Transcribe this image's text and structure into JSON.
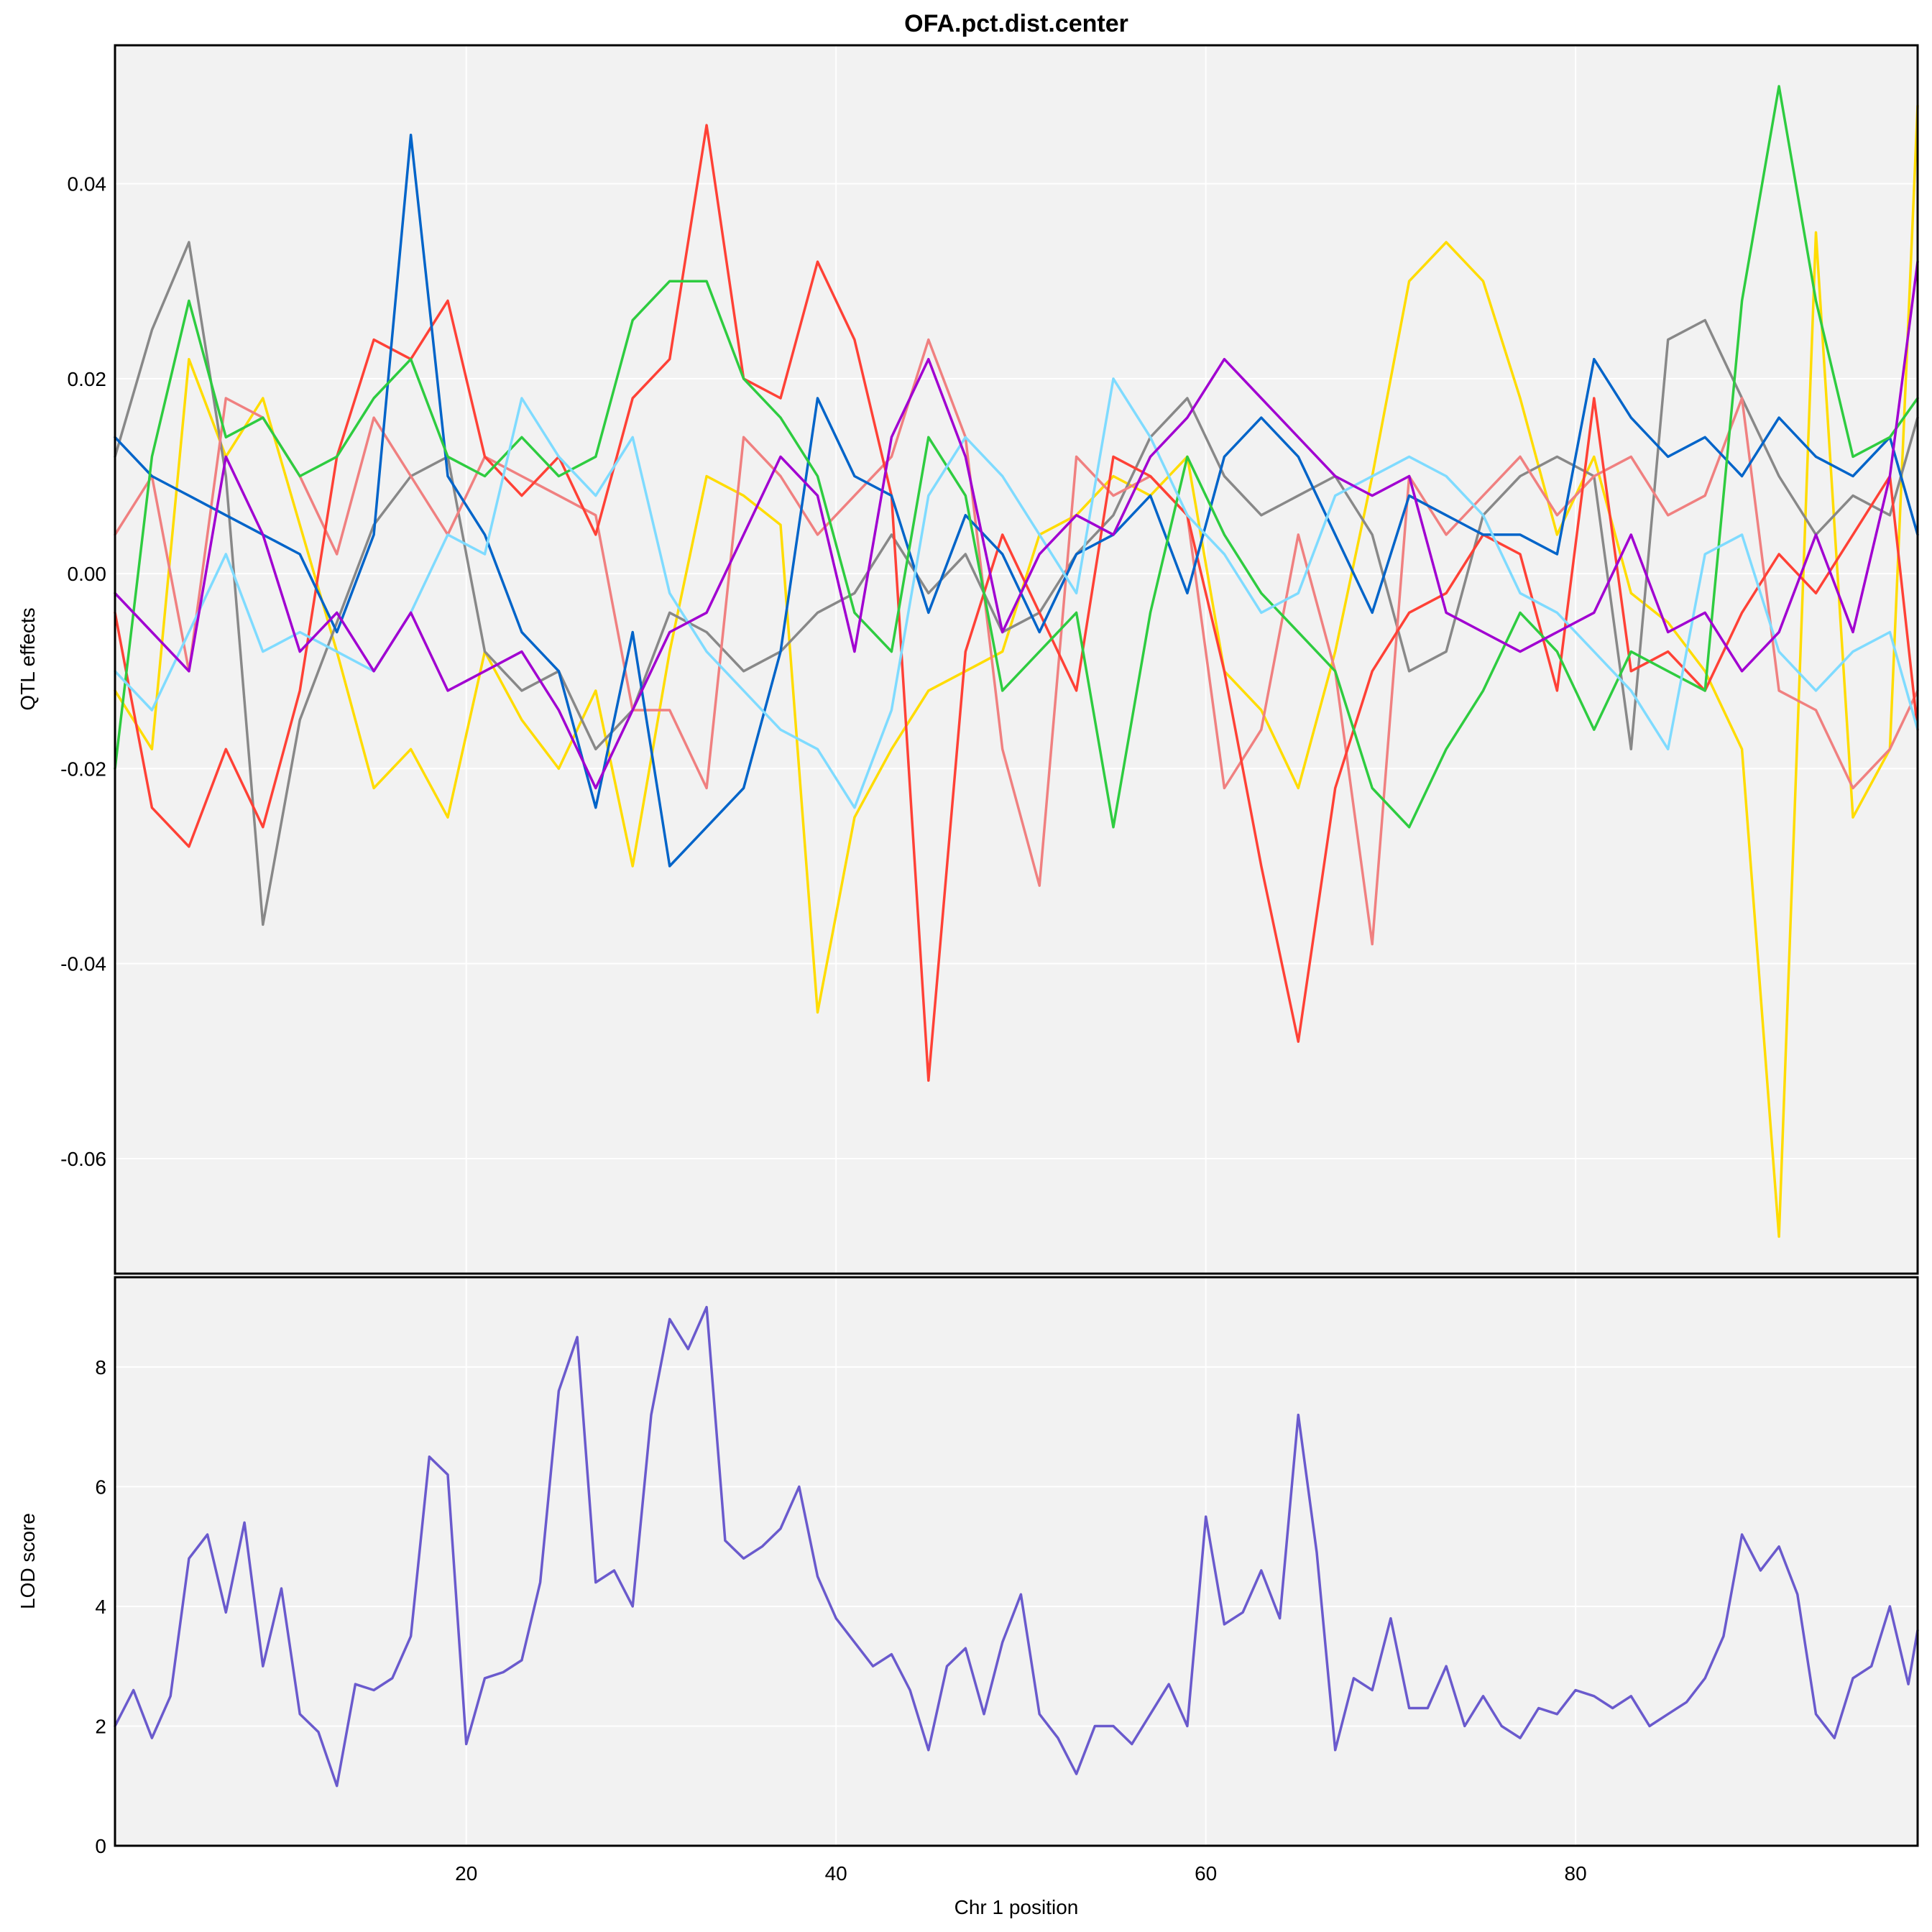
{
  "chart_data": [
    {
      "type": "line",
      "title": "OFA.pct.dist.center",
      "ylabel": "QTL effects",
      "xlim": [
        1,
        98.5
      ],
      "ylim": [
        -0.0718,
        0.0542
      ],
      "grid": true,
      "x_ticks": [
        20,
        40,
        60,
        80
      ],
      "y_ticks": [
        -0.06,
        -0.04,
        -0.02,
        0.0,
        0.02,
        0.04
      ],
      "y_tick_labels": [
        "-0.06",
        "-0.04",
        "-0.02",
        "0.00",
        "0.02",
        "0.04"
      ],
      "x": [
        1,
        3,
        5,
        7,
        9,
        11,
        13,
        15,
        17,
        19,
        21,
        23,
        25,
        27,
        29,
        31,
        33,
        35,
        37,
        39,
        41,
        43,
        45,
        47,
        49,
        51,
        53,
        55,
        57,
        59,
        61,
        63,
        65,
        67,
        69,
        71,
        73,
        75,
        77,
        79,
        81,
        83,
        85,
        87,
        89,
        91,
        93,
        95,
        97,
        98.5
      ],
      "series": [
        {
          "color": "#FFDC00",
          "values": [
            -0.012,
            -0.018,
            0.022,
            0.012,
            0.018,
            0.005,
            -0.008,
            -0.022,
            -0.018,
            -0.025,
            -0.008,
            -0.015,
            -0.02,
            -0.012,
            -0.03,
            -0.008,
            0.01,
            0.008,
            0.005,
            -0.045,
            -0.025,
            -0.018,
            -0.012,
            -0.01,
            -0.008,
            0.004,
            0.006,
            0.01,
            0.008,
            0.012,
            -0.01,
            -0.014,
            -0.022,
            -0.008,
            0.01,
            0.03,
            0.034,
            0.03,
            0.018,
            0.004,
            0.012,
            -0.002,
            -0.005,
            -0.01,
            -0.018,
            -0.068,
            0.035,
            -0.025,
            -0.018,
            0.048
          ]
        },
        {
          "color": "#888888",
          "values": [
            0.012,
            0.025,
            0.034,
            0.01,
            -0.036,
            -0.015,
            -0.005,
            0.005,
            0.01,
            0.012,
            -0.008,
            -0.012,
            -0.01,
            -0.018,
            -0.014,
            -0.004,
            -0.006,
            -0.01,
            -0.008,
            -0.004,
            -0.002,
            0.004,
            -0.002,
            0.002,
            -0.006,
            -0.004,
            0.002,
            0.006,
            0.014,
            0.018,
            0.01,
            0.006,
            0.008,
            0.01,
            0.004,
            -0.01,
            -0.008,
            0.006,
            0.01,
            0.012,
            0.01,
            -0.018,
            0.024,
            0.026,
            0.018,
            0.01,
            0.004,
            0.008,
            0.006,
            0.016
          ]
        },
        {
          "color": "#F08080",
          "values": [
            0.004,
            0.01,
            -0.01,
            0.018,
            0.016,
            0.01,
            0.002,
            0.016,
            0.01,
            0.004,
            0.012,
            0.01,
            0.008,
            0.006,
            -0.014,
            -0.014,
            -0.022,
            0.014,
            0.01,
            0.004,
            0.008,
            0.012,
            0.024,
            0.014,
            -0.018,
            -0.032,
            0.012,
            0.008,
            0.01,
            0.006,
            -0.022,
            -0.016,
            0.004,
            -0.01,
            -0.038,
            0.01,
            0.004,
            0.008,
            0.012,
            0.006,
            0.01,
            0.012,
            0.006,
            0.008,
            0.018,
            -0.012,
            -0.014,
            -0.022,
            -0.018,
            -0.012
          ]
        },
        {
          "color": "#FF4136",
          "values": [
            -0.004,
            -0.024,
            -0.028,
            -0.018,
            -0.026,
            -0.012,
            0.012,
            0.024,
            0.022,
            0.028,
            0.012,
            0.008,
            0.012,
            0.004,
            0.018,
            0.022,
            0.046,
            0.02,
            0.018,
            0.032,
            0.024,
            0.008,
            -0.052,
            -0.008,
            0.004,
            -0.004,
            -0.012,
            0.012,
            0.01,
            0.006,
            -0.01,
            -0.03,
            -0.048,
            -0.022,
            -0.01,
            -0.004,
            -0.002,
            0.004,
            0.002,
            -0.012,
            0.018,
            -0.01,
            -0.008,
            -0.012,
            -0.004,
            0.002,
            -0.002,
            0.004,
            0.01,
            -0.016
          ]
        },
        {
          "color": "#0064C9",
          "values": [
            0.014,
            0.01,
            0.008,
            0.006,
            0.004,
            0.002,
            -0.006,
            0.004,
            0.045,
            0.01,
            0.004,
            -0.006,
            -0.01,
            -0.024,
            -0.006,
            -0.03,
            -0.026,
            -0.022,
            -0.008,
            0.018,
            0.01,
            0.008,
            -0.004,
            0.006,
            0.002,
            -0.006,
            0.002,
            0.004,
            0.008,
            -0.002,
            0.012,
            0.016,
            0.012,
            0.004,
            -0.004,
            0.008,
            0.006,
            0.004,
            0.004,
            0.002,
            0.022,
            0.016,
            0.012,
            0.014,
            0.01,
            0.016,
            0.012,
            0.01,
            0.014,
            0.004
          ]
        },
        {
          "color": "#2ECC40",
          "values": [
            -0.02,
            0.012,
            0.028,
            0.014,
            0.016,
            0.01,
            0.012,
            0.018,
            0.022,
            0.012,
            0.01,
            0.014,
            0.01,
            0.012,
            0.026,
            0.03,
            0.03,
            0.02,
            0.016,
            0.01,
            -0.004,
            -0.008,
            0.014,
            0.008,
            -0.012,
            -0.008,
            -0.004,
            -0.026,
            -0.004,
            0.012,
            0.004,
            -0.002,
            -0.006,
            -0.01,
            -0.022,
            -0.026,
            -0.018,
            -0.012,
            -0.004,
            -0.008,
            -0.016,
            -0.008,
            -0.01,
            -0.012,
            0.028,
            0.05,
            0.028,
            0.012,
            0.014,
            0.018
          ]
        },
        {
          "color": "#7FDBFF",
          "values": [
            -0.01,
            -0.014,
            -0.006,
            0.002,
            -0.008,
            -0.006,
            -0.008,
            -0.01,
            -0.004,
            0.004,
            0.002,
            0.018,
            0.012,
            0.008,
            0.014,
            -0.002,
            -0.008,
            -0.012,
            -0.016,
            -0.018,
            -0.024,
            -0.014,
            0.008,
            0.014,
            0.01,
            0.004,
            -0.002,
            0.02,
            0.014,
            0.006,
            0.002,
            -0.004,
            -0.002,
            0.008,
            0.01,
            0.012,
            0.01,
            0.006,
            -0.002,
            -0.004,
            -0.008,
            -0.012,
            -0.018,
            0.002,
            0.004,
            -0.008,
            -0.012,
            -0.008,
            -0.006,
            -0.016
          ]
        },
        {
          "color": "#A100D1",
          "values": [
            -0.002,
            -0.006,
            -0.01,
            0.012,
            0.004,
            -0.008,
            -0.004,
            -0.01,
            -0.004,
            -0.012,
            -0.01,
            -0.008,
            -0.014,
            -0.022,
            -0.014,
            -0.006,
            -0.004,
            0.004,
            0.012,
            0.008,
            -0.008,
            0.014,
            0.022,
            0.012,
            -0.006,
            0.002,
            0.006,
            0.004,
            0.012,
            0.016,
            0.022,
            0.018,
            0.014,
            0.01,
            0.008,
            0.01,
            -0.004,
            -0.006,
            -0.008,
            -0.006,
            -0.004,
            0.004,
            -0.006,
            -0.004,
            -0.01,
            -0.006,
            0.004,
            -0.006,
            0.01,
            0.032
          ]
        }
      ]
    },
    {
      "type": "line",
      "title": "",
      "xlabel": "Chr 1 position",
      "ylabel": "LOD score",
      "xlim": [
        1,
        98.5
      ],
      "ylim": [
        0,
        9.5
      ],
      "grid": true,
      "x_ticks": [
        20,
        40,
        60,
        80
      ],
      "x_tick_labels": [
        "20",
        "40",
        "60",
        "80"
      ],
      "y_ticks": [
        0,
        2,
        4,
        6,
        8
      ],
      "y_tick_labels": [
        "0",
        "2",
        "4",
        "6",
        "8"
      ],
      "x": [
        1,
        2,
        3,
        4,
        5,
        6,
        7,
        8,
        9,
        10,
        11,
        12,
        13,
        14,
        15,
        16,
        17,
        18,
        19,
        20,
        21,
        22,
        23,
        24,
        25,
        26,
        27,
        28,
        29,
        30,
        31,
        32,
        33,
        34,
        35,
        36,
        37,
        38,
        39,
        40,
        41,
        42,
        43,
        44,
        45,
        46,
        47,
        48,
        49,
        50,
        51,
        52,
        53,
        54,
        55,
        56,
        57,
        58,
        59,
        60,
        61,
        62,
        63,
        64,
        65,
        66,
        67,
        68,
        69,
        70,
        71,
        72,
        73,
        74,
        75,
        76,
        77,
        78,
        79,
        80,
        81,
        82,
        83,
        84,
        85,
        86,
        87,
        88,
        89,
        90,
        91,
        92,
        93,
        94,
        95,
        96,
        97,
        98,
        98.5
      ],
      "series": [
        {
          "color": "#6A5ACD",
          "values": [
            2.0,
            2.6,
            1.8,
            2.5,
            4.8,
            5.2,
            3.9,
            5.4,
            3.0,
            4.3,
            2.2,
            1.9,
            1.0,
            2.7,
            2.6,
            2.8,
            3.5,
            6.5,
            6.2,
            1.7,
            2.8,
            2.9,
            3.1,
            4.4,
            7.6,
            8.5,
            4.4,
            4.6,
            4.0,
            7.2,
            8.8,
            8.3,
            9.0,
            5.1,
            4.8,
            5.0,
            5.3,
            6.0,
            4.5,
            3.8,
            3.4,
            3.0,
            3.2,
            2.6,
            1.6,
            3.0,
            3.3,
            2.2,
            3.4,
            4.2,
            2.2,
            1.8,
            1.2,
            2.0,
            2.0,
            1.7,
            2.2,
            2.7,
            2.0,
            5.5,
            3.7,
            3.9,
            4.6,
            3.8,
            7.2,
            4.9,
            1.6,
            2.8,
            2.6,
            3.8,
            2.3,
            2.3,
            3.0,
            2.0,
            2.5,
            2.0,
            1.8,
            2.3,
            2.2,
            2.6,
            2.5,
            2.3,
            2.5,
            2.0,
            2.2,
            2.4,
            2.8,
            3.5,
            5.2,
            4.6,
            5.0,
            4.2,
            2.2,
            1.8,
            2.8,
            3.0,
            4.0,
            2.7,
            3.6
          ]
        }
      ]
    }
  ]
}
